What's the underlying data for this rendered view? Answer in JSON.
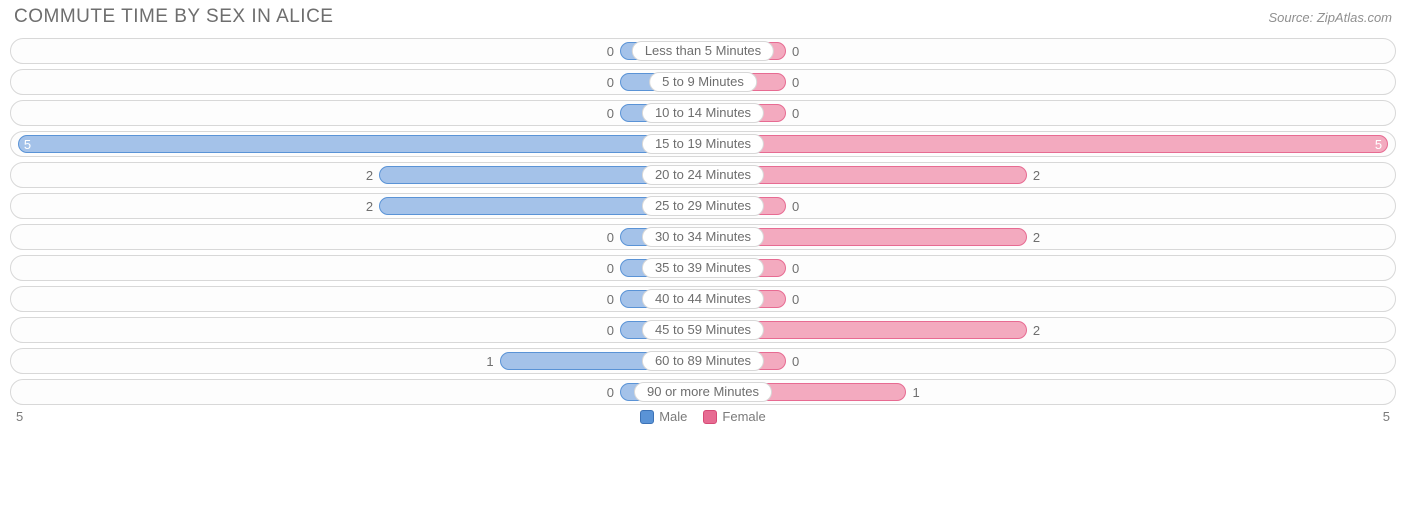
{
  "chart": {
    "type": "bar",
    "title": "COMMUTE TIME BY SEX IN ALICE",
    "source": "Source: ZipAtlas.com",
    "max_value": 5,
    "axis_left_label": "5",
    "axis_right_label": "5",
    "min_bar_pct": 12,
    "colors": {
      "male_fill": "#a4c2e9",
      "male_border": "#5a93d6",
      "female_fill": "#f3aabf",
      "female_border": "#e76b92",
      "track_border": "#d8d8d8",
      "track_bg": "#fdfdfd",
      "text": "#6e6e6e",
      "background": "#ffffff"
    },
    "legend": [
      {
        "label": "Male",
        "fill": "#5a93d6",
        "border": "#3c72b6"
      },
      {
        "label": "Female",
        "fill": "#e76b92",
        "border": "#d64a76"
      }
    ],
    "categories": [
      {
        "label": "Less than 5 Minutes",
        "male": 0,
        "female": 0
      },
      {
        "label": "5 to 9 Minutes",
        "male": 0,
        "female": 0
      },
      {
        "label": "10 to 14 Minutes",
        "male": 0,
        "female": 0
      },
      {
        "label": "15 to 19 Minutes",
        "male": 5,
        "female": 5
      },
      {
        "label": "20 to 24 Minutes",
        "male": 2,
        "female": 2
      },
      {
        "label": "25 to 29 Minutes",
        "male": 2,
        "female": 0
      },
      {
        "label": "30 to 34 Minutes",
        "male": 0,
        "female": 2
      },
      {
        "label": "35 to 39 Minutes",
        "male": 0,
        "female": 0
      },
      {
        "label": "40 to 44 Minutes",
        "male": 0,
        "female": 0
      },
      {
        "label": "45 to 59 Minutes",
        "male": 0,
        "female": 2
      },
      {
        "label": "60 to 89 Minutes",
        "male": 1,
        "female": 0
      },
      {
        "label": "90 or more Minutes",
        "male": 0,
        "female": 1
      }
    ]
  }
}
